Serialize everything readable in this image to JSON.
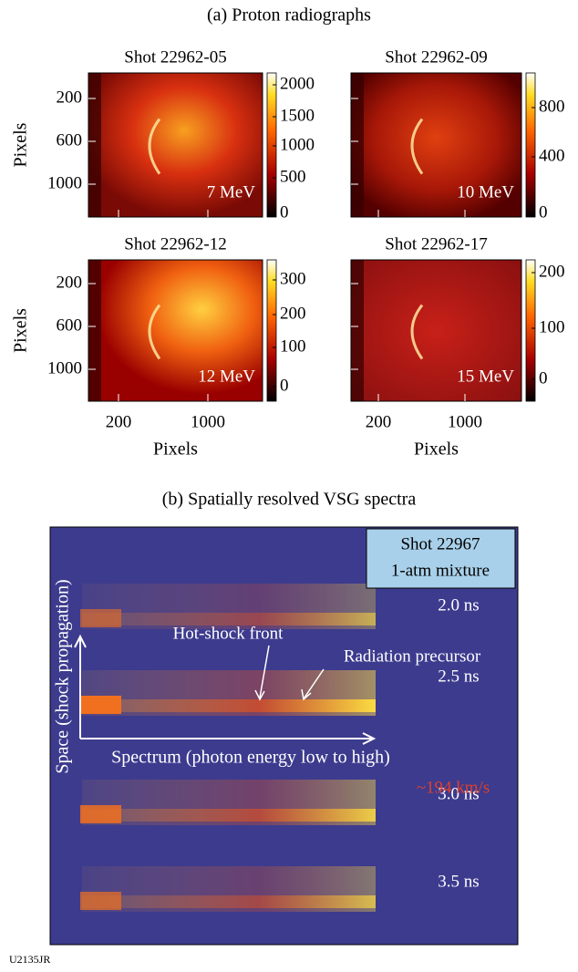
{
  "panel_a": {
    "title": "(a) Proton radiographs",
    "y_axis_label": "Pixels",
    "x_axis_label": "Pixels",
    "y_ticks": [
      200,
      600,
      1000
    ],
    "x_ticks": [
      200,
      1000
    ],
    "plots": [
      {
        "shot": "Shot 22962-05",
        "energy": "7 MeV",
        "colorbar_ticks": [
          2000,
          1500,
          1000,
          500,
          0
        ]
      },
      {
        "shot": "Shot 22962-09",
        "energy": "10 MeV",
        "colorbar_ticks": [
          800,
          400,
          0
        ]
      },
      {
        "shot": "Shot 22962-12",
        "energy": "12 MeV",
        "colorbar_ticks": [
          300,
          200,
          100,
          0
        ]
      },
      {
        "shot": "Shot 22962-17",
        "energy": "15 MeV",
        "colorbar_ticks": [
          200,
          100,
          0
        ]
      }
    ]
  },
  "panel_b": {
    "title": "(b) Spatially resolved VSG spectra",
    "box": {
      "line1": "Shot 22967",
      "line2": "1-atm mixture"
    },
    "times": [
      "2.0 ns",
      "2.5 ns",
      "3.0 ns",
      "3.5 ns"
    ],
    "annotations": {
      "hot_shock": "Hot-shock front",
      "precursor": "Radiation precursor",
      "x_arrow": "Spectrum (photon energy low to high)",
      "y_arrow": "Space (shock propagation)",
      "speed": "~194 km/s"
    }
  },
  "figure_id": "U2135JR"
}
